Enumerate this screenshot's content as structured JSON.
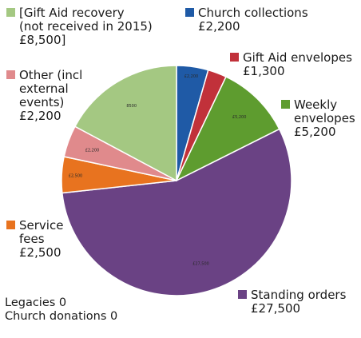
{
  "chart_data": {
    "type": "pie",
    "start_angle_deg": 0,
    "direction": "clockwise",
    "slices": [
      {
        "category": "Church collections",
        "legend_lines": [
          "Church collections",
          "£2,200"
        ],
        "value": 2200,
        "color": "#1f5aa6",
        "slice_label": "£2,200"
      },
      {
        "category": "Gift Aid envelopes",
        "legend_lines": [
          "Gift Aid envelopes",
          "£1,300"
        ],
        "value": 1300,
        "color": "#c1313a",
        "slice_label": ""
      },
      {
        "category": "Weekly envelopes",
        "legend_lines": [
          "Weekly",
          "envelopes",
          "£5,200"
        ],
        "value": 5200,
        "color": "#5e9c2f",
        "slice_label": "£5,200"
      },
      {
        "category": "Standing orders",
        "legend_lines": [
          "Standing orders",
          "£27,500"
        ],
        "value": 27500,
        "color": "#6a4284",
        "slice_label": "£27,500"
      },
      {
        "category": "Service fees",
        "legend_lines": [
          "Service",
          "fees",
          "£2,500"
        ],
        "value": 2500,
        "color": "#e8731f",
        "slice_label": "£2,500"
      },
      {
        "category": "Other (incl external events)",
        "legend_lines": [
          "Other (incl",
          "external",
          "events)",
          "£2,200"
        ],
        "value": 2200,
        "color": "#e08a8c",
        "slice_label": "£2,200"
      },
      {
        "category": "[Gift Aid recovery (not received in 2015)",
        "legend_lines": [
          "[Gift Aid recovery",
          "(not received in 2015)",
          "£8,500]"
        ],
        "value": 8500,
        "color": "#a4c882",
        "slice_label": "8500"
      }
    ]
  },
  "notes": {
    "legacies": "Legacies 0",
    "church_donations": "Church donations 0"
  }
}
